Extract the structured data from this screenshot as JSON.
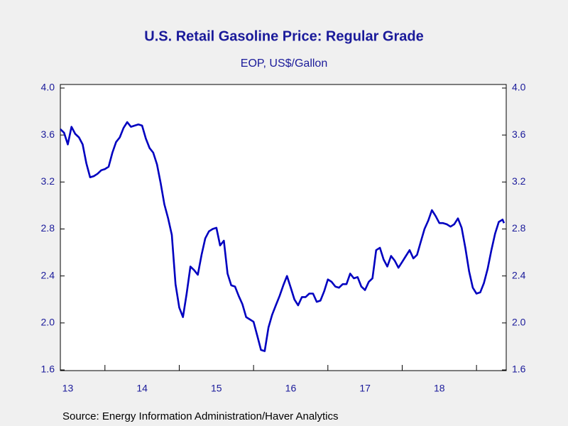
{
  "chart_data": {
    "type": "line",
    "title": "U.S. Retail Gasoline Price: Regular Grade",
    "subtitle": "EOP, US$/Gallon",
    "source": "Source:  Energy Information Administration/Haver Analytics",
    "xlim": [
      13.4,
      19.4
    ],
    "xticks": [
      {
        "value": 13.5,
        "label": "13"
      },
      {
        "value": 14.5,
        "label": "14"
      },
      {
        "value": 15.5,
        "label": "15"
      },
      {
        "value": 16.5,
        "label": "16"
      },
      {
        "value": 17.5,
        "label": "17"
      },
      {
        "value": 18.5,
        "label": "18"
      }
    ],
    "ylim": [
      1.6,
      4.0
    ],
    "yticks": [
      1.6,
      {
        "value": 2,
        "label": "2.0"
      },
      2.4,
      2.8,
      3.2,
      3.6,
      {
        "value": 4,
        "label": "4.0"
      }
    ],
    "x": [
      13.4,
      13.45,
      13.5,
      13.55,
      13.6,
      13.65,
      13.7,
      13.75,
      13.8,
      13.85,
      13.9,
      13.95,
      14.0,
      14.05,
      14.1,
      14.15,
      14.2,
      14.25,
      14.3,
      14.35,
      14.4,
      14.45,
      14.5,
      14.55,
      14.6,
      14.65,
      14.7,
      14.75,
      14.8,
      14.85,
      14.9,
      14.95,
      15.0,
      15.05,
      15.1,
      15.15,
      15.2,
      15.25,
      15.3,
      15.35,
      15.4,
      15.45,
      15.5,
      15.55,
      15.6,
      15.65,
      15.7,
      15.75,
      15.8,
      15.85,
      15.9,
      15.95,
      16.0,
      16.05,
      16.1,
      16.15,
      16.2,
      16.25,
      16.3,
      16.35,
      16.4,
      16.45,
      16.5,
      16.55,
      16.6,
      16.65,
      16.7,
      16.75,
      16.8,
      16.85,
      16.9,
      16.95,
      17.0,
      17.05,
      17.1,
      17.15,
      17.2,
      17.25,
      17.3,
      17.35,
      17.4,
      17.45,
      17.5,
      17.55,
      17.6,
      17.65,
      17.7,
      17.75,
      17.8,
      17.85,
      17.9,
      17.95,
      18.0,
      18.05,
      18.1,
      18.15,
      18.2,
      18.25,
      18.3,
      18.35,
      18.4,
      18.45,
      18.5,
      18.55,
      18.6,
      18.65,
      18.7,
      18.75,
      18.8,
      18.85,
      18.9,
      18.95,
      19.0,
      19.05,
      19.1,
      19.15,
      19.2,
      19.25,
      19.3,
      19.35,
      19.37
    ],
    "series": [
      {
        "color": "#0000c0",
        "values": [
          3.65,
          3.62,
          3.52,
          3.67,
          3.61,
          3.58,
          3.52,
          3.36,
          3.24,
          3.25,
          3.27,
          3.3,
          3.31,
          3.33,
          3.45,
          3.54,
          3.58,
          3.66,
          3.71,
          3.67,
          3.68,
          3.69,
          3.68,
          3.57,
          3.49,
          3.45,
          3.35,
          3.19,
          3.01,
          2.89,
          2.75,
          2.33,
          2.13,
          2.05,
          2.25,
          2.48,
          2.45,
          2.41,
          2.58,
          2.72,
          2.78,
          2.8,
          2.81,
          2.66,
          2.7,
          2.42,
          2.32,
          2.31,
          2.23,
          2.16,
          2.05,
          2.03,
          2.01,
          1.89,
          1.77,
          1.76,
          1.96,
          2.07,
          2.15,
          2.23,
          2.32,
          2.4,
          2.3,
          2.2,
          2.15,
          2.22,
          2.22,
          2.25,
          2.25,
          2.18,
          2.19,
          2.27,
          2.37,
          2.35,
          2.31,
          2.3,
          2.33,
          2.33,
          2.42,
          2.38,
          2.39,
          2.31,
          2.28,
          2.35,
          2.38,
          2.62,
          2.64,
          2.54,
          2.48,
          2.57,
          2.53,
          2.47,
          2.52,
          2.57,
          2.62,
          2.55,
          2.58,
          2.69,
          2.8,
          2.87,
          2.96,
          2.91,
          2.85,
          2.85,
          2.84,
          2.82,
          2.84,
          2.89,
          2.81,
          2.64,
          2.44,
          2.3,
          2.25,
          2.26,
          2.34,
          2.46,
          2.62,
          2.76,
          2.86,
          2.88,
          2.85
        ]
      }
    ]
  }
}
